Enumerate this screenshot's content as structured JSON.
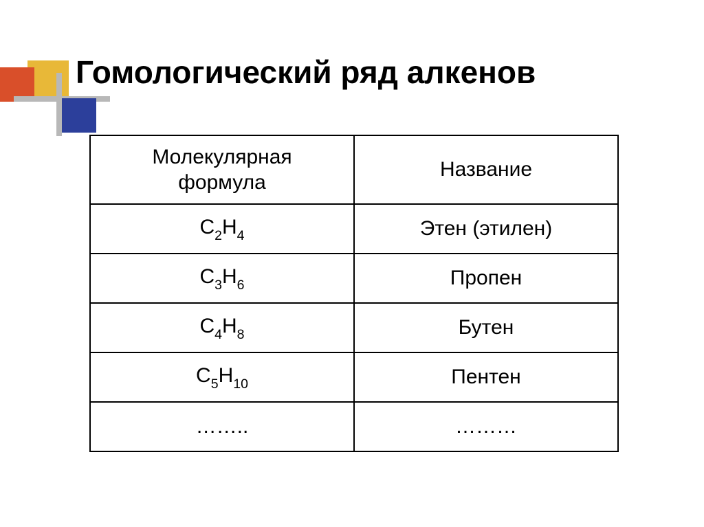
{
  "title": "Гомологический ряд алкенов",
  "table": {
    "header": {
      "formula_label_line1": "Молекулярная",
      "formula_label_line2": "формула",
      "name_label": "Название"
    },
    "rows": [
      {
        "formula_c": "C",
        "formula_csub": "2",
        "formula_h": "H",
        "formula_hsub": "4",
        "name": "Этен (этилен)"
      },
      {
        "formula_c": "C",
        "formula_csub": "3",
        "formula_h": "H",
        "formula_hsub": "6",
        "name": "Пропен"
      },
      {
        "formula_c": "C",
        "formula_csub": "4",
        "formula_h": "H",
        "formula_hsub": "8",
        "name": "Бутен"
      },
      {
        "formula_c": "C",
        "formula_csub": "5",
        "formula_h": "H",
        "formula_hsub": "10",
        "name": "Пентен"
      }
    ],
    "ellipsis_formula": "……..",
    "ellipsis_name": "………"
  },
  "decor_colors": {
    "gold": "#e8b838",
    "red": "#d94f2a",
    "blue": "#2c3f9b",
    "gray": "#b8b8b8"
  }
}
